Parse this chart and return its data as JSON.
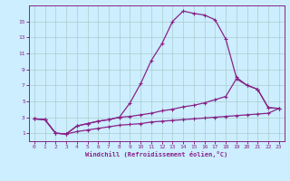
{
  "xlabel": "Windchill (Refroidissement éolien,°C)",
  "bg_color": "#cceeff",
  "line_color": "#882288",
  "grid_color": "#aacccc",
  "xlim": [
    -0.5,
    23.5
  ],
  "ylim": [
    0,
    17
  ],
  "xticks": [
    0,
    1,
    2,
    3,
    4,
    5,
    6,
    7,
    8,
    9,
    10,
    11,
    12,
    13,
    14,
    15,
    16,
    17,
    18,
    19,
    20,
    21,
    22,
    23
  ],
  "yticks": [
    1,
    3,
    5,
    7,
    9,
    11,
    13,
    15
  ],
  "top_x": [
    0,
    1,
    2,
    3,
    4,
    5,
    6,
    7,
    8,
    9,
    10,
    11,
    12,
    13,
    14,
    15,
    16,
    17,
    18,
    19,
    20,
    21,
    22,
    23
  ],
  "top_y": [
    2.8,
    2.7,
    1.0,
    0.9,
    1.9,
    2.2,
    2.5,
    2.7,
    3.0,
    4.8,
    7.2,
    10.1,
    12.2,
    15.0,
    16.3,
    16.0,
    15.8,
    15.2,
    12.8,
    8.0,
    7.0,
    6.5,
    4.2,
    4.1
  ],
  "mid_x": [
    0,
    1,
    2,
    3,
    4,
    5,
    6,
    7,
    8,
    9,
    10,
    11,
    12,
    13,
    14,
    15,
    16,
    17,
    18,
    19,
    20,
    21,
    22,
    23
  ],
  "mid_y": [
    2.8,
    2.7,
    1.0,
    0.9,
    1.9,
    2.2,
    2.5,
    2.7,
    3.0,
    3.1,
    3.3,
    3.5,
    3.8,
    4.0,
    4.3,
    4.5,
    4.8,
    5.2,
    5.6,
    7.8,
    7.0,
    6.5,
    4.2,
    4.1
  ],
  "bot_x": [
    0,
    1,
    2,
    3,
    4,
    5,
    6,
    7,
    8,
    9,
    10,
    11,
    12,
    13,
    14,
    15,
    16,
    17,
    18,
    19,
    20,
    21,
    22,
    23
  ],
  "bot_y": [
    2.8,
    2.7,
    1.0,
    0.9,
    1.2,
    1.4,
    1.6,
    1.8,
    2.0,
    2.1,
    2.2,
    2.4,
    2.5,
    2.6,
    2.7,
    2.8,
    2.9,
    3.0,
    3.1,
    3.2,
    3.3,
    3.4,
    3.5,
    4.1
  ]
}
